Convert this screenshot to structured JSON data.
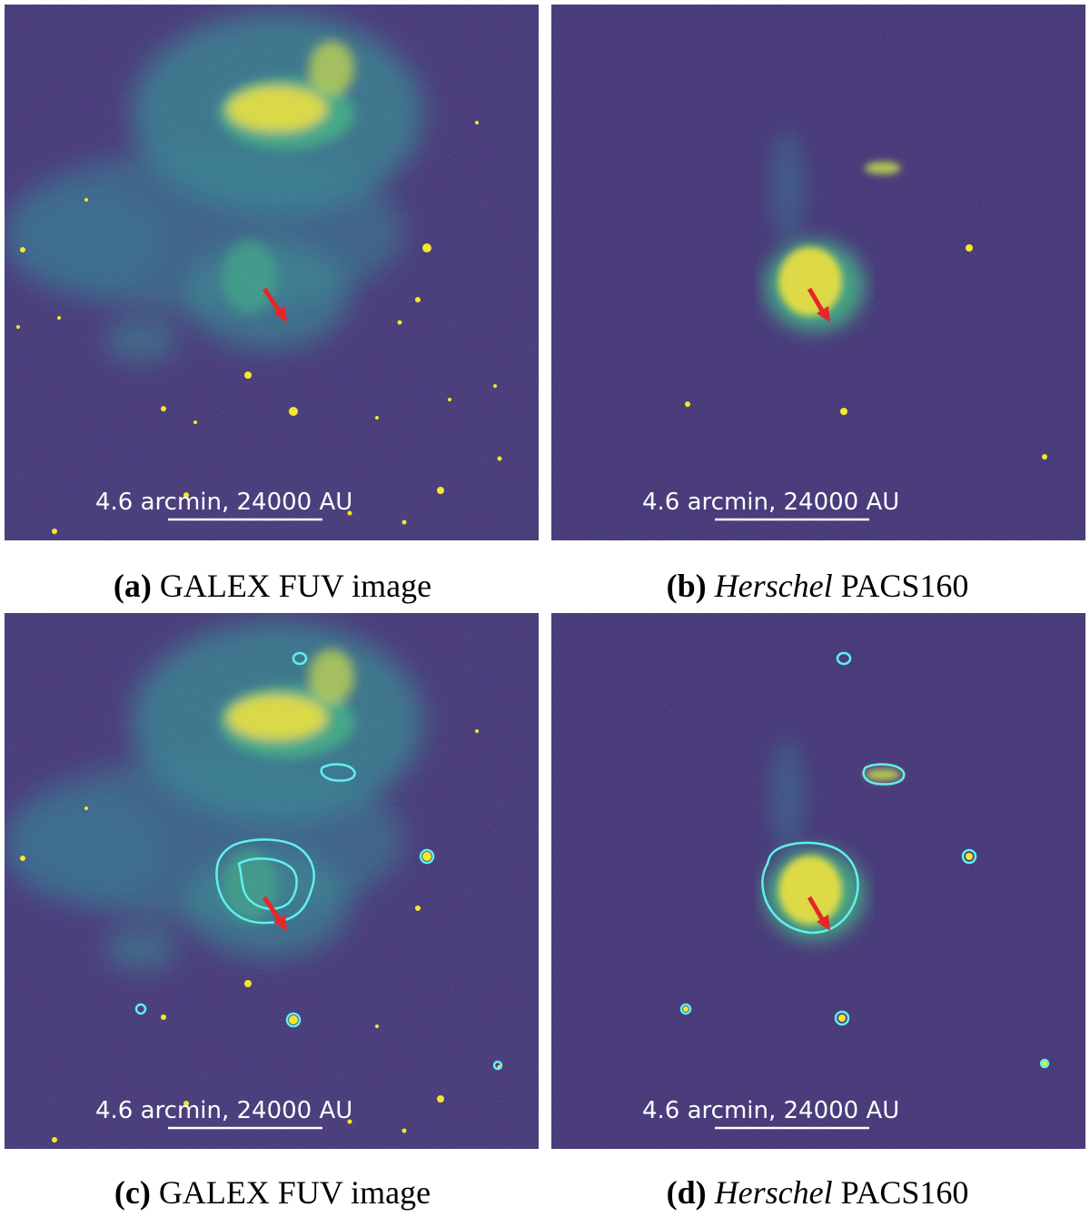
{
  "colors": {
    "background": "#3f2b6e",
    "emission_low": "#2a8c8c",
    "emission_mid": "#39b07c",
    "emission_high": "#f5e82a",
    "contour": "#5ff0f0",
    "arrow": "#e8262a",
    "scalebar": "#ffffff"
  },
  "scalebar": {
    "text": "4.6 arcmin, 24000 AU"
  },
  "panels": [
    {
      "id": "a",
      "label": "(a)",
      "caption": "GALEX FUV image",
      "contours": false
    },
    {
      "id": "b",
      "label": "(b)",
      "caption_italic": "Herschel",
      "caption": " PACS160",
      "contours": false
    },
    {
      "id": "c",
      "label": "(c)",
      "caption": "GALEX FUV image",
      "contours": true
    },
    {
      "id": "d",
      "label": "(d)",
      "caption_italic": "Herschel",
      "caption": " PACS160",
      "contours": true
    }
  ],
  "icons": {
    "arrow": "red-arrow-icon"
  }
}
